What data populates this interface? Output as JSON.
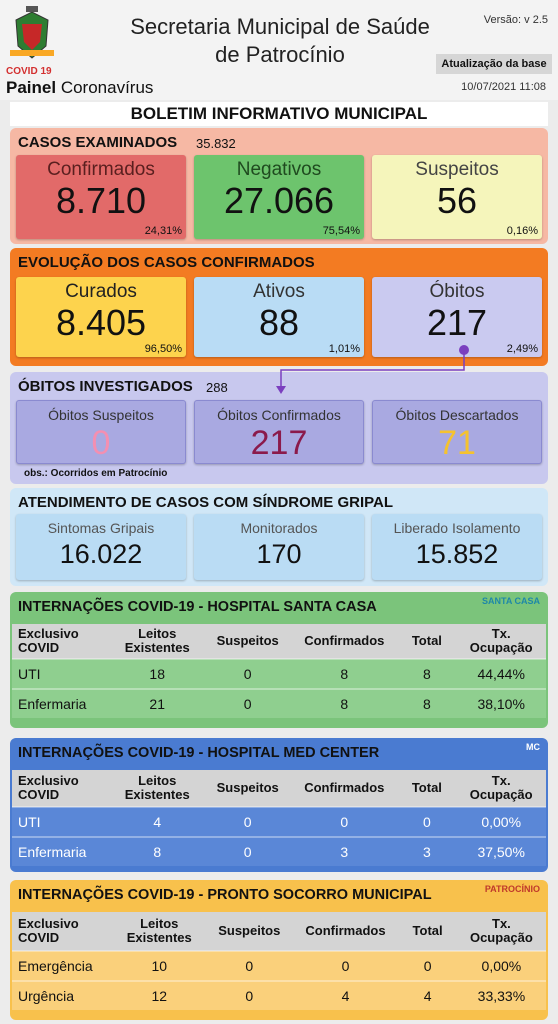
{
  "header": {
    "logo_label": "COVID 19",
    "app_name": "Painel",
    "app_subtitle": "Coronavírus",
    "title_line1": "Secretaria Municipal de Saúde",
    "title_line2": "de Patrocínio",
    "version": "Versão: v 2.5",
    "update_label": "Atualização da base",
    "update_time": "10/07/2021 11:08"
  },
  "banner": "BOLETIM INFORMATIVO MUNICIPAL",
  "cases": {
    "title": "CASOS EXAMINADOS",
    "total": "35.832",
    "cards": [
      {
        "label": "Confirmados",
        "value": "8.710",
        "percent": "24,31%"
      },
      {
        "label": "Negativos",
        "value": "27.066",
        "percent": "75,54%"
      },
      {
        "label": "Suspeitos",
        "value": "56",
        "percent": "0,16%"
      }
    ]
  },
  "evolution": {
    "title": "EVOLUÇÃO DOS CASOS CONFIRMADOS",
    "cards": [
      {
        "label": "Curados",
        "value": "8.405",
        "percent": "96,50%"
      },
      {
        "label": "Ativos",
        "value": "88",
        "percent": "1,01%"
      },
      {
        "label": "Óbitos",
        "value": "217",
        "percent": "2,49%"
      }
    ]
  },
  "deaths": {
    "title": "ÓBITOS INVESTIGADOS",
    "total": "288",
    "cards": [
      {
        "label": "Óbitos Suspeitos",
        "value": "0"
      },
      {
        "label": "Óbitos Confirmados",
        "value": "217"
      },
      {
        "label": "Óbitos Descartados",
        "value": "71"
      }
    ],
    "note": "obs.: Ocorridos em Patrocínio"
  },
  "flu": {
    "title": "ATENDIMENTO DE CASOS COM SÍNDROME GRIPAL",
    "cards": [
      {
        "label": "Sintomas Gripais",
        "value": "16.022"
      },
      {
        "label": "Monitorados",
        "value": "170"
      },
      {
        "label": "Liberado Isolamento",
        "value": "15.852"
      }
    ]
  },
  "hospitals": [
    {
      "title": "INTERNAÇÕES COVID-19 - HOSPITAL SANTA CASA",
      "logo": "SANTA CASA",
      "columns": [
        "Exclusivo COVID",
        "Leitos Existentes",
        "Suspeitos",
        "Confirmados",
        "Total",
        "Tx. Ocupação"
      ],
      "rows": [
        [
          "UTI",
          "18",
          "0",
          "8",
          "8",
          "44,44%"
        ],
        [
          "Enfermaria",
          "21",
          "0",
          "8",
          "8",
          "38,10%"
        ]
      ]
    },
    {
      "title": "INTERNAÇÕES COVID-19 - HOSPITAL MED CENTER",
      "logo": "MC",
      "columns": [
        "Exclusivo COVID",
        "Leitos Existentes",
        "Suspeitos",
        "Confirmados",
        "Total",
        "Tx. Ocupação"
      ],
      "rows": [
        [
          "UTI",
          "4",
          "0",
          "0",
          "0",
          "0,00%"
        ],
        [
          "Enfermaria",
          "8",
          "0",
          "3",
          "3",
          "37,50%"
        ]
      ]
    },
    {
      "title": "INTERNAÇÕES COVID-19 - PRONTO SOCORRO MUNICIPAL",
      "logo": "PATROCÍNIO",
      "columns": [
        "Exclusivo COVID",
        "Leitos Existentes",
        "Suspeitos",
        "Confirmados",
        "Total",
        "Tx. Ocupação"
      ],
      "rows": [
        [
          "Emergência",
          "10",
          "0",
          "0",
          "0",
          "0,00%"
        ],
        [
          "Urgência",
          "12",
          "0",
          "4",
          "4",
          "33,33%"
        ]
      ]
    }
  ]
}
